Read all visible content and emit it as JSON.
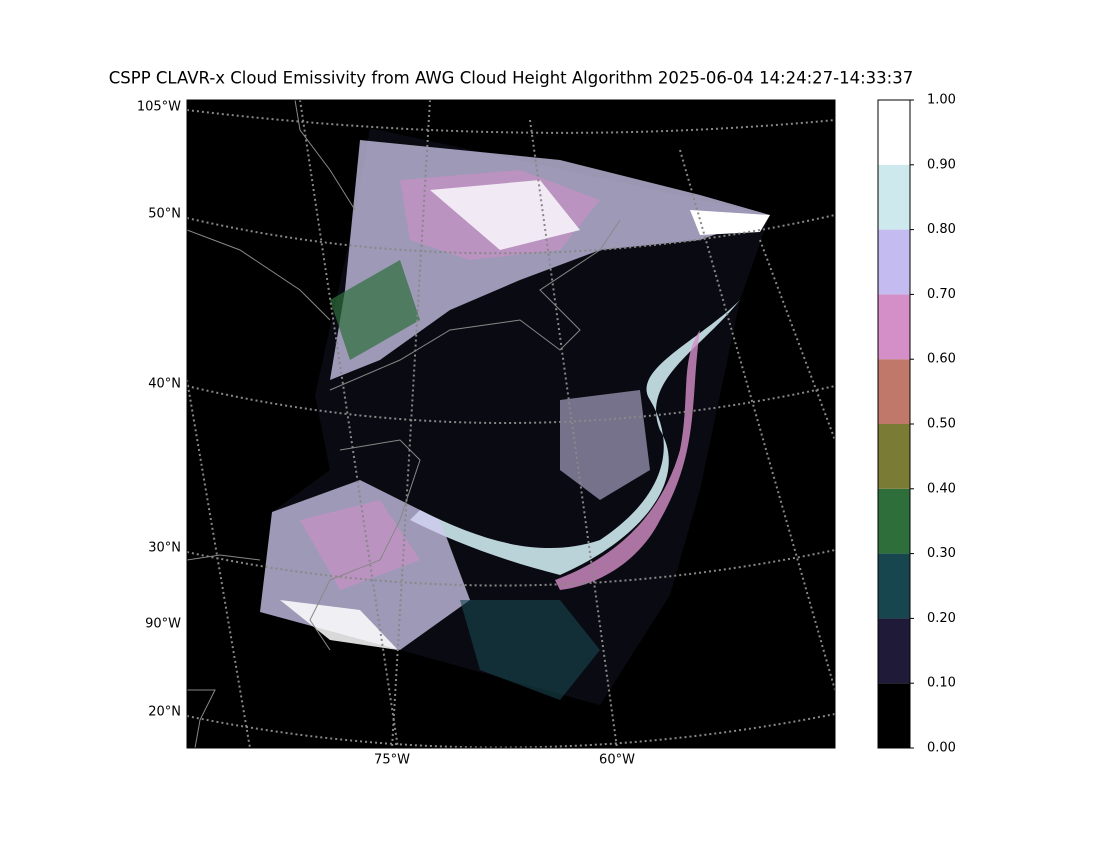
{
  "map": {
    "title": "CSPP CLAVR-x Cloud Emissivity from AWG Cloud Height Algorithm 2025-06-04 14:24:27-14:33:37",
    "left_labels": [
      "105°W",
      "50°N",
      "40°N",
      "30°N",
      "90°W",
      "20°N"
    ],
    "bottom_labels": [
      "75°W",
      "60°W"
    ],
    "colorbar": {
      "lim": [
        0,
        1
      ],
      "ticks": [
        {
          "value": 0,
          "label": "0.00"
        },
        {
          "value": 0.1,
          "label": "0.10"
        },
        {
          "value": 0.2,
          "label": "0.20"
        },
        {
          "value": 0.3,
          "label": "0.30"
        },
        {
          "value": 0.4,
          "label": "0.40"
        },
        {
          "value": 0.5,
          "label": "0.50"
        },
        {
          "value": 0.6,
          "label": "0.60"
        },
        {
          "value": 0.7,
          "label": "0.70"
        },
        {
          "value": 0.8,
          "label": "0.80"
        },
        {
          "value": 0.9,
          "label": "0.90"
        },
        {
          "value": 1,
          "label": "1.00"
        }
      ],
      "colors": [
        "#000000",
        "#1f1a38",
        "#17464f",
        "#2e6e3b",
        "#7a7b35",
        "#bf786a",
        "#d48ec8",
        "#c4bcf0",
        "#cde9ee",
        "#ffffff"
      ]
    }
  }
}
